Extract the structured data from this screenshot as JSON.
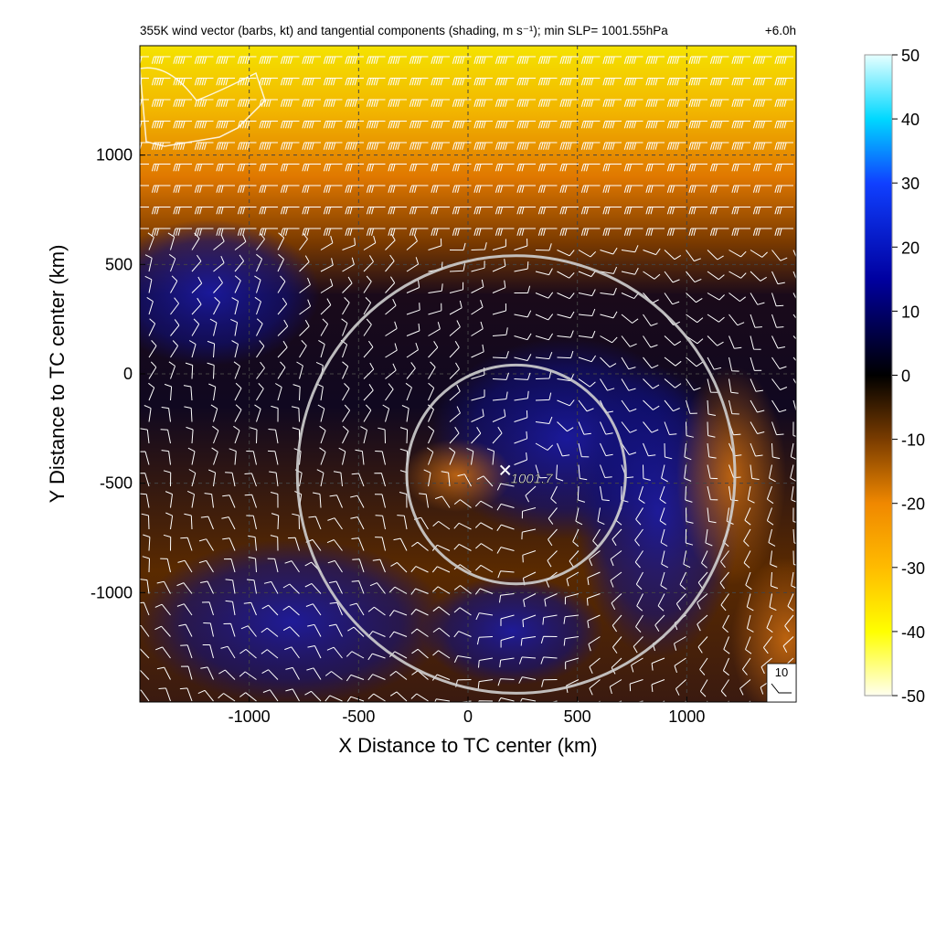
{
  "chart_data": {
    "type": "heatmap",
    "title": "355K wind vector (barbs, kt) and tangential components (shading, m s⁻¹); min SLP= 1001.55hPa",
    "time_label": "+6.0h",
    "xlabel": "X Distance to TC center (km)",
    "ylabel": "Y Distance to TC center (km)",
    "xlim": [
      -1500,
      1500
    ],
    "ylim": [
      -1500,
      1500
    ],
    "x_ticks": [
      -1000,
      -500,
      0,
      500,
      1000
    ],
    "y_ticks": [
      1000,
      500,
      0,
      -500,
      -1000
    ],
    "grid": true,
    "colorbar": {
      "ticks": [
        50,
        40,
        30,
        20,
        10,
        0,
        -10,
        -20,
        -30,
        -40,
        -50
      ],
      "range": [
        -50,
        50
      ],
      "colors": [
        "#fffde6",
        "#ffff00",
        "#ffc400",
        "#ff8c00",
        "#c86400",
        "#000000",
        "#0000b4",
        "#0000ff",
        "#00c8ff",
        "#e6ffff"
      ]
    },
    "center_marker": {
      "x": 170,
      "y": -440,
      "label": "1001.7"
    },
    "rings": [
      {
        "center_x": 220,
        "center_y": -460,
        "radius_km": 500
      },
      {
        "center_x": 220,
        "center_y": -460,
        "radius_km": 1000
      }
    ],
    "reference_barb": {
      "label": "10"
    }
  }
}
